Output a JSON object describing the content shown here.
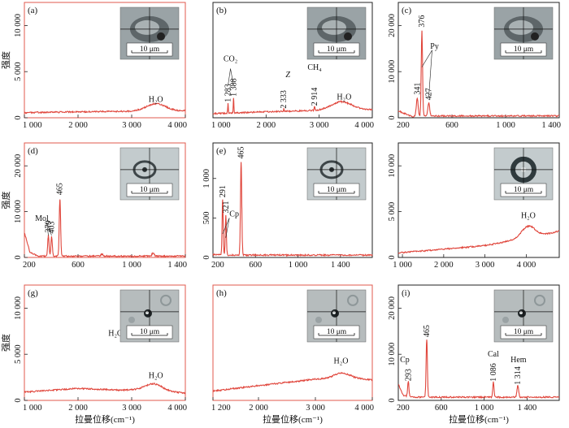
{
  "figure": {
    "ylabel_text": "强度",
    "xlabel_text": "拉曼位移(cm⁻¹)"
  },
  "chart_data": [
    {
      "id": "a",
      "type": "line",
      "label": "(a)",
      "frame_color": "#e05a4e",
      "xlim": [
        1000,
        4000
      ],
      "ylim": [
        0,
        12500
      ],
      "xticks": [
        1000,
        2000,
        3000,
        4000
      ],
      "xtick_labels": [
        "1 000",
        "2 000",
        "3 000",
        "4 000"
      ],
      "yticks": [
        0,
        5000,
        10000
      ],
      "ytick_labels": [
        "0",
        "5 000",
        "10 000"
      ],
      "show_ylabel": true,
      "show_xlabel": false,
      "inset": "dark",
      "baseline": [
        [
          1000,
          550
        ],
        [
          2000,
          650
        ],
        [
          3000,
          700
        ],
        [
          4000,
          750
        ]
      ],
      "peaks": [
        {
          "x": 3450,
          "h": 800,
          "w": 180
        }
      ],
      "annotations": [
        {
          "x": 3450,
          "y": 1700,
          "text": "H₂O"
        }
      ],
      "scale_text": "10 μm"
    },
    {
      "id": "b",
      "type": "line",
      "label": "(b)",
      "frame_color": "#222222",
      "xlim": [
        1000,
        4000
      ],
      "ylim": [
        0,
        12500
      ],
      "xticks": [
        1000,
        2000,
        3000,
        4000
      ],
      "xtick_labels": [
        "1 000",
        "2 000",
        "3 000",
        "4 000"
      ],
      "yticks": [],
      "ytick_labels": [],
      "show_ylabel": false,
      "show_xlabel": false,
      "inset": "dark",
      "baseline": [
        [
          1000,
          450
        ],
        [
          2000,
          650
        ],
        [
          3000,
          800
        ],
        [
          4000,
          900
        ]
      ],
      "peaks": [
        {
          "x": 1283,
          "h": 1000,
          "w": 6
        },
        {
          "x": 1388,
          "h": 1600,
          "w": 6
        },
        {
          "x": 2333,
          "h": 250,
          "w": 6
        },
        {
          "x": 2914,
          "h": 400,
          "w": 8
        },
        {
          "x": 3420,
          "h": 900,
          "w": 190
        }
      ],
      "annotations": [
        {
          "x": 1283,
          "y": 1700,
          "text": "1 283",
          "rotate": true
        },
        {
          "x": 1388,
          "y": 2300,
          "text": "1 388",
          "rotate": true
        },
        {
          "x": 1330,
          "y": 6100,
          "text": "CO₂"
        },
        {
          "x": 2333,
          "y": 1000,
          "text": "2 333",
          "rotate": true
        },
        {
          "x": 2410,
          "y": 4400,
          "text": "Z",
          "italic": true
        },
        {
          "x": 2914,
          "y": 1300,
          "text": "2 914",
          "rotate": true
        },
        {
          "x": 2914,
          "y": 5200,
          "text": "CH₄"
        },
        {
          "x": 3470,
          "y": 2000,
          "text": "H₂O"
        }
      ],
      "scale_text": "10 μm"
    },
    {
      "id": "c",
      "type": "line",
      "label": "(c)",
      "frame_color": "#222222",
      "xlim": [
        200,
        1400
      ],
      "ylim": [
        0,
        25000
      ],
      "xticks": [
        200,
        600,
        1000,
        1400
      ],
      "xtick_labels": [
        "200",
        "600",
        "1 000",
        "1 400"
      ],
      "yticks": [
        0,
        10000,
        20000
      ],
      "ytick_labels": [
        "0",
        "10 000",
        "20 000"
      ],
      "show_ylabel": false,
      "show_xlabel": false,
      "inset": "dark",
      "baseline": [
        [
          200,
          1500
        ],
        [
          300,
          300
        ],
        [
          500,
          400
        ],
        [
          1400,
          400
        ]
      ],
      "peaks": [
        {
          "x": 341,
          "h": 3800,
          "w": 7
        },
        {
          "x": 376,
          "h": 18500,
          "w": 5
        },
        {
          "x": 427,
          "h": 2800,
          "w": 7
        }
      ],
      "annotations": [
        {
          "x": 341,
          "y": 5000,
          "text": "341",
          "rotate": true
        },
        {
          "x": 376,
          "y": 19600,
          "text": "376",
          "rotate": true
        },
        {
          "x": 427,
          "y": 3800,
          "text": "427",
          "rotate": true
        },
        {
          "x": 470,
          "y": 15000,
          "text": "Py"
        }
      ],
      "scale_text": "10 μm"
    },
    {
      "id": "d",
      "type": "line",
      "label": "(d)",
      "frame_color": "#e05a4e",
      "xlim": [
        200,
        1400
      ],
      "ylim": [
        0,
        25000
      ],
      "xticks": [
        200,
        600,
        1000,
        1400
      ],
      "xtick_labels": [
        "200",
        "600",
        "1 000",
        "1 400"
      ],
      "yticks": [
        0,
        10000,
        20000
      ],
      "ytick_labels": [
        "0",
        "10 000",
        "20 000"
      ],
      "show_ylabel": true,
      "show_xlabel": false,
      "inset": "light",
      "baseline": [
        [
          200,
          5500
        ],
        [
          240,
          1200
        ],
        [
          300,
          300
        ],
        [
          1400,
          300
        ]
      ],
      "peaks": [
        {
          "x": 379,
          "h": 4500,
          "w": 5
        },
        {
          "x": 403,
          "h": 4300,
          "w": 5
        },
        {
          "x": 465,
          "h": 12500,
          "w": 5
        },
        {
          "x": 780,
          "h": 400,
          "w": 8
        },
        {
          "x": 1160,
          "h": 700,
          "w": 8
        }
      ],
      "annotations": [
        {
          "x": 379,
          "y": 5400,
          "text": "379",
          "rotate": true
        },
        {
          "x": 403,
          "y": 5200,
          "text": "403",
          "rotate": true
        },
        {
          "x": 465,
          "y": 13600,
          "text": "465",
          "rotate": true
        },
        {
          "x": 330,
          "y": 8000,
          "text": "Mol"
        }
      ],
      "scale_text": "10 μm"
    },
    {
      "id": "e",
      "type": "line",
      "label": "(e)",
      "frame_color": "#222222",
      "xlim": [
        200,
        1700
      ],
      "ylim": [
        0,
        1450
      ],
      "xticks": [
        200,
        600,
        1000,
        1400
      ],
      "xtick_labels": [
        "200",
        "600",
        "1 000",
        "1 400"
      ],
      "yticks": [
        0,
        500,
        1000
      ],
      "ytick_labels": [
        "0",
        "500",
        "1 000"
      ],
      "show_ylabel": false,
      "show_xlabel": false,
      "inset": "light",
      "baseline": [
        [
          200,
          40
        ],
        [
          300,
          30
        ],
        [
          1700,
          30
        ]
      ],
      "peaks": [
        {
          "x": 291,
          "h": 700,
          "w": 5
        },
        {
          "x": 321,
          "h": 500,
          "w": 5
        },
        {
          "x": 465,
          "h": 1180,
          "w": 6
        }
      ],
      "annotations": [
        {
          "x": 291,
          "y": 760,
          "text": "291",
          "rotate": true
        },
        {
          "x": 321,
          "y": 560,
          "text": "321",
          "rotate": true
        },
        {
          "x": 465,
          "y": 1250,
          "text": "465",
          "rotate": true
        },
        {
          "x": 400,
          "y": 520,
          "text": "Cp"
        }
      ],
      "scale_text": "10 μm"
    },
    {
      "id": "f",
      "type": "line",
      "label": "",
      "frame_color": "#222222",
      "xlim": [
        900,
        4800
      ],
      "ylim": [
        0,
        12500
      ],
      "xticks": [
        1000,
        2000,
        3000,
        4000
      ],
      "xtick_labels": [
        "1 000",
        "2 000",
        "3 000",
        "4 000"
      ],
      "yticks": [
        0,
        5000,
        10000
      ],
      "ytick_labels": [
        "0",
        "5 000",
        "10 000"
      ],
      "show_ylabel": false,
      "show_xlabel": false,
      "inset": "ring",
      "baseline": [
        [
          900,
          500
        ],
        [
          2000,
          900
        ],
        [
          3000,
          1300
        ],
        [
          3600,
          1800
        ],
        [
          4300,
          2300
        ],
        [
          4800,
          2900
        ]
      ],
      "peaks": [
        {
          "x": 4050,
          "h": 1300,
          "w": 170
        }
      ],
      "annotations": [
        {
          "x": 4050,
          "y": 4300,
          "text": "H₂O"
        }
      ],
      "scale_text": "10 μm"
    },
    {
      "id": "g",
      "type": "line",
      "label": "(g)",
      "frame_color": "#e05a4e",
      "xlim": [
        1000,
        4000
      ],
      "ylim": [
        0,
        12500
      ],
      "xticks": [
        1000,
        2000,
        3000,
        4000
      ],
      "xtick_labels": [
        "1 000",
        "2 000",
        "3 000",
        "4 000"
      ],
      "yticks": [
        0,
        5000,
        10000
      ],
      "ytick_labels": [
        "0",
        "5 000",
        "10 000"
      ],
      "show_ylabel": true,
      "show_xlabel": true,
      "inset": "speckle",
      "baseline": [
        [
          1000,
          900
        ],
        [
          2000,
          1300
        ],
        [
          2800,
          1100
        ],
        [
          3200,
          1200
        ],
        [
          4000,
          800
        ]
      ],
      "peaks": [
        {
          "x": 3420,
          "h": 700,
          "w": 150
        }
      ],
      "annotations": [
        {
          "x": 3450,
          "y": 2400,
          "text": "H₂O"
        },
        {
          "x": 2700,
          "y": 7000,
          "text": "H₂O"
        }
      ],
      "scale_text": "10 μm"
    },
    {
      "id": "h",
      "type": "line",
      "label": "(h)",
      "frame_color": "#e05a4e",
      "xlim": [
        1200,
        4000
      ],
      "ylim": [
        0,
        12500
      ],
      "xticks": [
        1200,
        2000,
        3000,
        4000
      ],
      "xtick_labels": [
        "1 200",
        "2 000",
        "3 000",
        "4 000"
      ],
      "yticks": [],
      "ytick_labels": [],
      "show_ylabel": false,
      "show_xlabel": true,
      "inset": "speckle",
      "baseline": [
        [
          1200,
          1000
        ],
        [
          2000,
          1600
        ],
        [
          3000,
          2300
        ],
        [
          3600,
          2500
        ],
        [
          4000,
          2200
        ]
      ],
      "peaks": [
        {
          "x": 3450,
          "h": 500,
          "w": 130
        }
      ],
      "annotations": [
        {
          "x": 3450,
          "y": 4000,
          "text": "H₂O"
        }
      ],
      "scale_text": "10 μm"
    },
    {
      "id": "i",
      "type": "line",
      "label": "(i)",
      "frame_color": "#222222",
      "xlim": [
        200,
        1700
      ],
      "ylim": [
        0,
        25000
      ],
      "xticks": [
        200,
        600,
        1000,
        1400
      ],
      "xtick_labels": [
        "200",
        "600",
        "1 000",
        "1 400"
      ],
      "yticks": [
        0,
        10000,
        20000
      ],
      "ytick_labels": [
        "0",
        "10 000",
        "20 000"
      ],
      "show_ylabel": false,
      "show_xlabel": true,
      "inset": "speckle",
      "baseline": [
        [
          200,
          3500
        ],
        [
          250,
          1000
        ],
        [
          350,
          700
        ],
        [
          1700,
          700
        ]
      ],
      "peaks": [
        {
          "x": 293,
          "h": 3300,
          "w": 6
        },
        {
          "x": 465,
          "h": 12500,
          "w": 6
        },
        {
          "x": 1086,
          "h": 3200,
          "w": 6
        },
        {
          "x": 1314,
          "h": 2500,
          "w": 8
        }
      ],
      "annotations": [
        {
          "x": 293,
          "y": 4200,
          "text": "293",
          "rotate": true
        },
        {
          "x": 465,
          "y": 13700,
          "text": "465",
          "rotate": true
        },
        {
          "x": 1086,
          "y": 4100,
          "text": "1 086",
          "rotate": true
        },
        {
          "x": 1314,
          "y": 3400,
          "text": "1 314",
          "rotate": true
        },
        {
          "x": 260,
          "y": 8300,
          "text": "Cp"
        },
        {
          "x": 1086,
          "y": 9500,
          "text": "Cal"
        },
        {
          "x": 1320,
          "y": 8300,
          "text": "Hem"
        }
      ],
      "scale_text": "10 μm"
    }
  ]
}
